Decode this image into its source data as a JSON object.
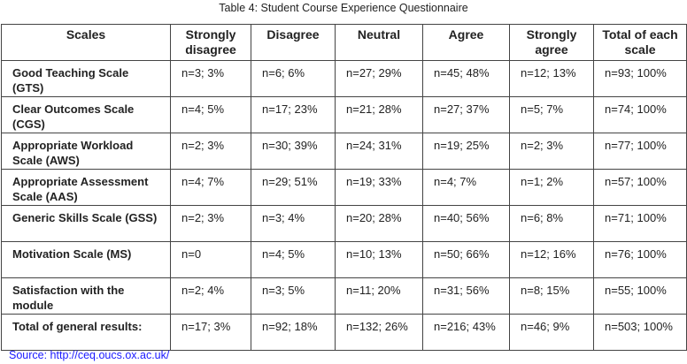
{
  "title": "Table 4: Student Course Experience Questionnaire",
  "headers": [
    "Scales",
    "Strongly disagree",
    "Disagree",
    "Neutral",
    "Agree",
    "Strongly agree",
    "Total of each scale"
  ],
  "rows": [
    [
      "Good Teaching Scale (GTS)",
      "n=3; 3%",
      "n=6; 6%",
      "n=27; 29%",
      "n=45; 48%",
      "n=12; 13%",
      "n=93; 100%"
    ],
    [
      "Clear Outcomes Scale (CGS)",
      "n=4; 5%",
      "n=17; 23%",
      "n=21; 28%",
      "n=27; 37%",
      "n=5; 7%",
      "n=74; 100%"
    ],
    [
      "Appropriate Workload Scale (AWS)",
      "n=2; 3%",
      "n=30; 39%",
      "n=24; 31%",
      "n=19; 25%",
      "n=2;  3%",
      "n=77; 100%"
    ],
    [
      "Appropriate Assessment Scale (AAS)",
      "n=4; 7%",
      "n=29; 51%",
      "n=19; 33%",
      "n=4; 7%",
      "n=1; 2%",
      "n=57; 100%"
    ],
    [
      "Generic Skills Scale (GSS)",
      "n=2; 3%",
      "n=3; 4%",
      "n=20; 28%",
      "n=40; 56%",
      "n=6; 8%",
      "n=71; 100%"
    ],
    [
      "Motivation Scale (MS)",
      "n=0",
      "n=4; 5%",
      "n=10; 13%",
      "n=50; 66%",
      "n=12; 16%",
      "n=76; 100%"
    ],
    [
      "Satisfaction with the module",
      "n=2; 4%",
      "n=3; 5%",
      "n=11; 20%",
      "n=31; 56%",
      "n=8; 15%",
      "n=55; 100%"
    ],
    [
      "Total of general results:",
      "n=17; 3%",
      "n=92; 18%",
      "n=132; 26%",
      "n=216; 43%",
      "n=46; 9%",
      "n=503; 100%"
    ]
  ],
  "source": "Source: http://ceq.oucs.ox.ac.uk/",
  "colors": {
    "source_link": "#1a1aff",
    "border": "#444444"
  }
}
